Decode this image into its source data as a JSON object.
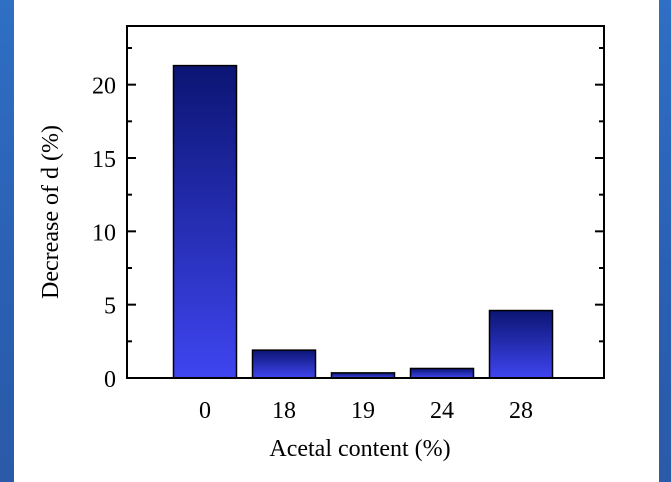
{
  "chart_data": {
    "type": "bar",
    "categories": [
      "0",
      "18",
      "19",
      "24",
      "28"
    ],
    "values": [
      21.3,
      1.9,
      0.35,
      0.65,
      4.6
    ],
    "title": "",
    "xlabel": "Acetal content (%)",
    "ylabel": "Decrease of d (%)",
    "ylim": [
      0,
      24
    ],
    "yticks": [
      "0",
      "5",
      "10",
      "15",
      "20"
    ],
    "grid": false,
    "bar_color_top": "#0b1573",
    "bar_color_bottom": "#3f45f0"
  },
  "colors": {
    "frame": "#2a63b8",
    "panel": "#ffffff"
  }
}
